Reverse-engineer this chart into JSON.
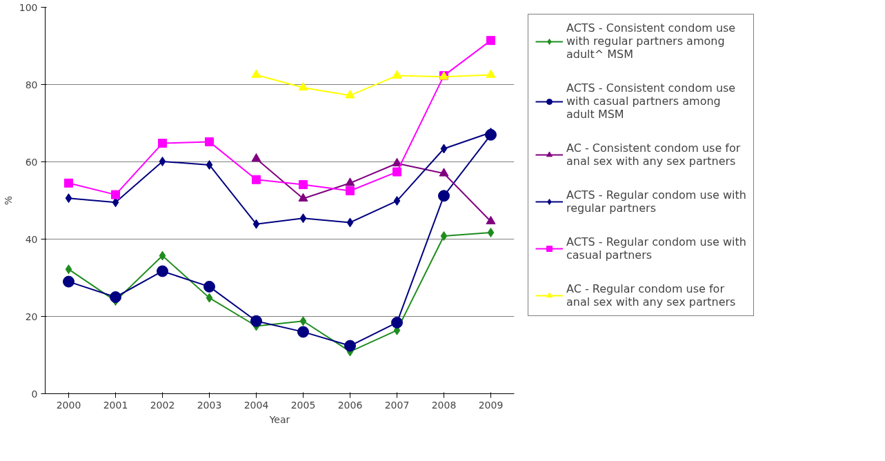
{
  "chart_data": {
    "type": "line",
    "xlabel": "Year",
    "ylabel": "%",
    "categories": [
      "2000",
      "2001",
      "2002",
      "2003",
      "2004",
      "2005",
      "2006",
      "2007",
      "2008",
      "2009"
    ],
    "ylim": [
      0,
      100
    ],
    "yticks": [
      0,
      20,
      40,
      60,
      80,
      100
    ],
    "grid": "y",
    "legend": "right",
    "series": [
      {
        "name": "ACTS - Consistent condom use with regular partners among adult^ MSM",
        "color": "#1e8c1e",
        "marker": "diamond",
        "values": [
          32.2,
          24.0,
          35.7,
          24.8,
          17.5,
          18.8,
          10.9,
          16.4,
          40.8,
          41.7
        ]
      },
      {
        "name": "ACTS - Consistent condom use with casual partners among adult MSM",
        "color": "#000080",
        "marker": "circle",
        "values": [
          29.0,
          25.0,
          31.7,
          27.7,
          18.8,
          16.0,
          12.4,
          18.4,
          51.2,
          67.0
        ]
      },
      {
        "name": "AC - Consistent condom use for anal sex with any sex partners",
        "color": "#800080",
        "marker": "triangle",
        "values": [
          null,
          null,
          null,
          null,
          60.8,
          50.5,
          54.5,
          59.6,
          57.0,
          44.6
        ]
      },
      {
        "name": "ACTS - Regular condom use with regular partners",
        "color": "#000080",
        "marker": "diamond",
        "values": [
          50.6,
          49.5,
          60.1,
          59.2,
          43.9,
          45.4,
          44.3,
          49.9,
          63.4,
          67.6
        ]
      },
      {
        "name": "ACTS - Regular condom use with casual partners",
        "color": "#ff00ff",
        "marker": "square",
        "values": [
          54.5,
          51.5,
          64.8,
          65.2,
          55.4,
          54.1,
          52.5,
          57.4,
          82.3,
          91.4
        ]
      },
      {
        "name": "AC - Regular condom use for anal sex with any sex partners",
        "color": "#ffff00",
        "marker": "triangle",
        "values": [
          null,
          null,
          null,
          null,
          82.5,
          79.2,
          77.2,
          82.3,
          82.0,
          82.5
        ]
      }
    ]
  }
}
